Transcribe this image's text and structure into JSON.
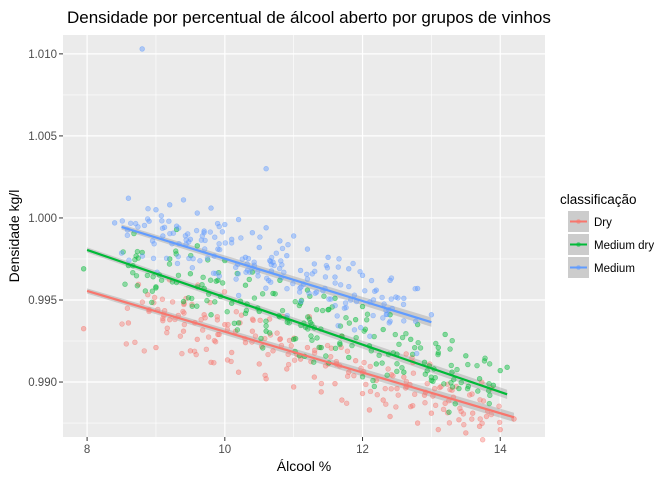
{
  "chart_data": {
    "type": "scatter",
    "title": "Densidade por percentual de álcool aberto por grupos de vinhos",
    "xlabel": "Álcool %",
    "ylabel": "Densidade kg/l",
    "xlim": [
      7.65,
      14.65
    ],
    "ylim": [
      0.98665,
      1.01115
    ],
    "x_ticks": [
      8,
      10,
      12,
      14
    ],
    "x_tick_labels": [
      "8",
      "10",
      "12",
      "14"
    ],
    "y_ticks": [
      0.99,
      0.995,
      1.0,
      1.005,
      1.01
    ],
    "y_tick_labels": [
      "0.990",
      "0.995",
      "1.000",
      "1.005",
      "1.010"
    ],
    "grid": true,
    "legend": {
      "title": "classificação",
      "position": "right"
    },
    "series": [
      {
        "name": "Dry",
        "color": "#F8766D",
        "trend": {
          "x": [
            8.0,
            14.2
          ],
          "y": [
            0.99555,
            0.98785
          ]
        },
        "points": [
          [
            7.95,
            0.99325
          ],
          [
            8.6,
            0.9936
          ],
          [
            8.9,
            0.9944
          ],
          [
            9.0,
            0.9921
          ],
          [
            9.2,
            0.9938
          ],
          [
            9.4,
            0.9931
          ],
          [
            9.5,
            0.9919
          ],
          [
            9.6,
            0.9926
          ],
          [
            9.7,
            0.9941
          ],
          [
            9.8,
            0.9912
          ],
          [
            9.9,
            0.9929
          ],
          [
            10.0,
            0.9935
          ],
          [
            10.1,
            0.9918
          ],
          [
            10.2,
            0.9906
          ],
          [
            10.3,
            0.9924
          ],
          [
            10.4,
            0.9931
          ],
          [
            10.5,
            0.9911
          ],
          [
            10.6,
            0.9902
          ],
          [
            10.7,
            0.9919
          ],
          [
            10.8,
            0.9926
          ],
          [
            10.9,
            0.9908
          ],
          [
            11.0,
            0.9897
          ],
          [
            11.1,
            0.9914
          ],
          [
            11.2,
            0.9921
          ],
          [
            11.3,
            0.9903
          ],
          [
            11.4,
            0.9894
          ],
          [
            11.5,
            0.9911
          ],
          [
            11.6,
            0.9899
          ],
          [
            11.7,
            0.9889
          ],
          [
            11.8,
            0.9906
          ],
          [
            11.9,
            0.9913
          ],
          [
            12.0,
            0.9893
          ],
          [
            12.1,
            0.9883
          ],
          [
            12.2,
            0.9901
          ],
          [
            12.3,
            0.9889
          ],
          [
            12.4,
            0.9879
          ],
          [
            12.5,
            0.9896
          ],
          [
            12.6,
            0.9903
          ],
          [
            12.7,
            0.9885
          ],
          [
            12.8,
            0.9875
          ],
          [
            12.9,
            0.9892
          ],
          [
            13.0,
            0.9881
          ],
          [
            13.1,
            0.9871
          ],
          [
            13.2,
            0.9887
          ],
          [
            13.3,
            0.9895
          ],
          [
            13.4,
            0.9877
          ],
          [
            13.5,
            0.9869
          ],
          [
            13.6,
            0.9881
          ],
          [
            13.7,
            0.9873
          ],
          [
            14.0,
            0.9871
          ],
          [
            14.2,
            0.98775
          ],
          [
            13.8,
            0.9879
          ]
        ]
      },
      {
        "name": "Medium dry",
        "color": "#00BA38",
        "trend": {
          "x": [
            8.0,
            14.1
          ],
          "y": [
            0.99805,
            0.98925
          ]
        },
        "points": [
          [
            7.95,
            0.9969
          ],
          [
            8.6,
            0.9971
          ],
          [
            8.8,
            0.9979
          ],
          [
            9.0,
            0.9958
          ],
          [
            9.2,
            0.9975
          ],
          [
            9.4,
            0.9949
          ],
          [
            9.5,
            0.9966
          ],
          [
            9.6,
            0.9983
          ],
          [
            9.7,
            0.9957
          ],
          [
            9.8,
            0.9941
          ],
          [
            9.9,
            0.9962
          ],
          [
            10.0,
            0.9974
          ],
          [
            10.1,
            0.9948
          ],
          [
            10.2,
            0.9936
          ],
          [
            10.3,
            0.9959
          ],
          [
            10.4,
            0.9967
          ],
          [
            10.5,
            0.9943
          ],
          [
            10.6,
            0.9931
          ],
          [
            10.7,
            0.9954
          ],
          [
            10.8,
            0.9962
          ],
          [
            10.9,
            0.9939
          ],
          [
            11.0,
            0.9926
          ],
          [
            11.1,
            0.9948
          ],
          [
            11.2,
            0.9956
          ],
          [
            11.3,
            0.9933
          ],
          [
            11.4,
            0.9921
          ],
          [
            11.5,
            0.9944
          ],
          [
            11.6,
            0.9951
          ],
          [
            11.7,
            0.9928
          ],
          [
            11.8,
            0.9915
          ],
          [
            11.9,
            0.9938
          ],
          [
            12.0,
            0.9946
          ],
          [
            12.1,
            0.9922
          ],
          [
            12.2,
            0.9911
          ],
          [
            12.3,
            0.9932
          ],
          [
            12.4,
            0.9941
          ],
          [
            12.5,
            0.9917
          ],
          [
            12.6,
            0.9906
          ],
          [
            12.7,
            0.9926
          ],
          [
            12.8,
            0.9935
          ],
          [
            12.9,
            0.9912
          ],
          [
            13.0,
            0.9901
          ],
          [
            13.1,
            0.9921
          ],
          [
            13.2,
            0.9929
          ],
          [
            13.3,
            0.9906
          ],
          [
            13.4,
            0.9896
          ],
          [
            13.5,
            0.9916
          ],
          [
            13.7,
            0.9902
          ],
          [
            13.9,
            0.9898
          ],
          [
            14.0,
            0.9907
          ],
          [
            14.1,
            0.9909
          ],
          [
            9.3,
            0.9993
          ]
        ]
      },
      {
        "name": "Medium",
        "color": "#619CFF",
        "trend": {
          "x": [
            8.5,
            13.0
          ],
          "y": [
            0.99945,
            0.99365
          ]
        },
        "points": [
          [
            8.4,
            0.9997
          ],
          [
            8.6,
            1.0012
          ],
          [
            8.8,
            1.0103
          ],
          [
            8.9,
            0.9998
          ],
          [
            9.0,
            1.0005
          ],
          [
            9.1,
            0.9989
          ],
          [
            9.2,
            1.0008
          ],
          [
            9.3,
            0.9995
          ],
          [
            9.4,
            1.0011
          ],
          [
            9.5,
            0.9987
          ],
          [
            9.6,
            1.0003
          ],
          [
            9.7,
            0.9992
          ],
          [
            9.8,
            1.0006
          ],
          [
            9.9,
            0.9981
          ],
          [
            10.0,
            0.9996
          ],
          [
            10.1,
            0.9987
          ],
          [
            10.2,
            0.9999
          ],
          [
            10.3,
            0.9976
          ],
          [
            10.4,
            0.9991
          ],
          [
            10.5,
            0.9982
          ],
          [
            10.6,
            0.9994
          ],
          [
            10.7,
            0.9973
          ],
          [
            10.8,
            0.9986
          ],
          [
            10.9,
            0.9977
          ],
          [
            11.0,
            0.9989
          ],
          [
            11.1,
            0.9968
          ],
          [
            11.2,
            0.9981
          ],
          [
            11.3,
            0.9972
          ],
          [
            11.5,
            0.9976
          ],
          [
            11.6,
            0.9964
          ],
          [
            11.8,
            0.9969
          ],
          [
            12.0,
            0.9965
          ],
          [
            12.2,
            0.9956
          ],
          [
            12.4,
            0.9962
          ],
          [
            12.6,
            0.9951
          ],
          [
            12.8,
            0.9957
          ],
          [
            13.0,
            0.9941
          ],
          [
            10.6,
            1.003
          ]
        ]
      }
    ]
  }
}
